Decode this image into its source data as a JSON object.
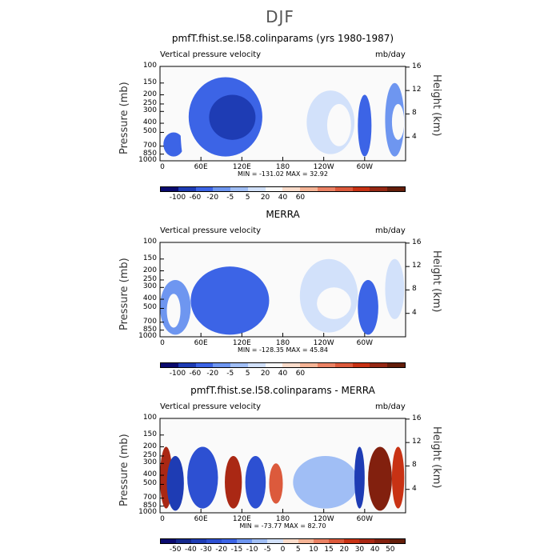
{
  "page": {
    "title": "DJF"
  },
  "common": {
    "y_title": "Pressure (mb)",
    "y2_title": "Height (km)",
    "pressure_ticks": [
      "100",
      "150",
      "200",
      "250",
      "300",
      "400",
      "500",
      "700",
      "850",
      "1000"
    ],
    "height_ticks": [
      "16",
      "12",
      "8",
      "4"
    ],
    "x_ticks": [
      "0",
      "60E",
      "120E",
      "180",
      "120W",
      "60W"
    ]
  },
  "panels": [
    {
      "title": "pmfT.fhist.se.l58.colinparams (yrs 1980-1987)",
      "left_label": "Vertical pressure velocity",
      "right_label": "mb/day",
      "minmax": "MIN = -131.02   MAX =  32.92",
      "colorbar_labels": [
        "-100",
        "-60",
        "-20",
        "-5",
        "5",
        "20",
        "40",
        "60"
      ]
    },
    {
      "title": "MERRA",
      "left_label": "Vertical pressure velocity",
      "right_label": "mb/day",
      "minmax": "MIN = -128.35   MAX =  45.84",
      "colorbar_labels": [
        "-100",
        "-60",
        "-20",
        "-5",
        "5",
        "20",
        "40",
        "60"
      ]
    },
    {
      "title": "pmfT.fhist.se.l58.colinparams - MERRA",
      "left_label": "Vertical pressure velocity",
      "right_label": "mb/day",
      "minmax": "MIN = -73.77   MAX =  82.70",
      "colorbar_labels": [
        "-50",
        "-40",
        "-30",
        "-20",
        "-15",
        "-10",
        "-5",
        "0",
        "5",
        "10",
        "15",
        "20",
        "30",
        "40",
        "50"
      ]
    }
  ],
  "chart_data": [
    {
      "type": "heatmap",
      "title": "pmfT.fhist.se.l58.colinparams (yrs 1980-1987)",
      "subtitle_left": "Vertical pressure velocity",
      "subtitle_right": "mb/day",
      "xlabel": "",
      "ylabel": "Pressure (mb)",
      "y2label": "Height (km)",
      "xlim": [
        0,
        360
      ],
      "ylim": [
        1000,
        100
      ],
      "y_scale": "log",
      "y2lim": [
        0,
        16
      ],
      "min": -131.02,
      "max": 32.92,
      "levels": [
        -100,
        -60,
        -20,
        -5,
        5,
        20,
        40,
        60
      ],
      "regions": [
        {
          "lon": [
            42,
            150
          ],
          "p": [
            130,
            900
          ],
          "value": -45
        },
        {
          "lon": [
            72,
            140
          ],
          "p": [
            200,
            600
          ],
          "value": -80
        },
        {
          "lon": [
            5,
            35
          ],
          "p": [
            500,
            900
          ],
          "value": -40
        },
        {
          "lon": [
            330,
            358
          ],
          "p": [
            150,
            900
          ],
          "value": -20
        },
        {
          "lon": [
            290,
            310
          ],
          "p": [
            200,
            900
          ],
          "value": -60
        },
        {
          "lon": [
            215,
            285
          ],
          "p": [
            180,
            850
          ],
          "value": 12
        },
        {
          "lon": [
            245,
            280
          ],
          "p": [
            250,
            700
          ],
          "value": 22
        },
        {
          "lon": [
            30,
            40
          ],
          "p": [
            200,
            900
          ],
          "value": 25
        },
        {
          "lon": [
            340,
            358
          ],
          "p": [
            250,
            600
          ],
          "value": 20
        }
      ]
    },
    {
      "type": "heatmap",
      "title": "MERRA",
      "subtitle_left": "Vertical pressure velocity",
      "subtitle_right": "mb/day",
      "xlabel": "",
      "ylabel": "Pressure (mb)",
      "y2label": "Height (km)",
      "xlim": [
        0,
        360
      ],
      "ylim": [
        1000,
        100
      ],
      "y_scale": "log",
      "y2lim": [
        0,
        16
      ],
      "min": -128.35,
      "max": 45.84,
      "levels": [
        -100,
        -60,
        -20,
        -5,
        5,
        20,
        40,
        60
      ],
      "regions": [
        {
          "lon": [
            45,
            160
          ],
          "p": [
            180,
            950
          ],
          "value": -30
        },
        {
          "lon": [
            75,
            135
          ],
          "p": [
            250,
            850
          ],
          "value": -60
        },
        {
          "lon": [
            0,
            45
          ],
          "p": [
            250,
            950
          ],
          "value": -15
        },
        {
          "lon": [
            290,
            320
          ],
          "p": [
            250,
            950
          ],
          "value": -60
        },
        {
          "lon": [
            205,
            290
          ],
          "p": [
            150,
            900
          ],
          "value": 8
        },
        {
          "lon": [
            230,
            280
          ],
          "p": [
            300,
            650
          ],
          "value": 20
        },
        {
          "lon": [
            10,
            30
          ],
          "p": [
            350,
            800
          ],
          "value": 20
        },
        {
          "lon": [
            330,
            358
          ],
          "p": [
            150,
            650
          ],
          "value": 8
        }
      ]
    },
    {
      "type": "heatmap",
      "title": "pmfT.fhist.se.l58.colinparams - MERRA",
      "subtitle_left": "Vertical pressure velocity",
      "subtitle_right": "mb/day",
      "xlabel": "",
      "ylabel": "Pressure (mb)",
      "y2label": "Height (km)",
      "xlim": [
        0,
        360
      ],
      "ylim": [
        1000,
        100
      ],
      "y_scale": "log",
      "y2lim": [
        0,
        16
      ],
      "min": -73.77,
      "max": 82.7,
      "levels": [
        -50,
        -40,
        -30,
        -20,
        -15,
        -10,
        -5,
        0,
        5,
        10,
        15,
        20,
        30,
        40,
        50
      ],
      "regions": [
        {
          "lon": [
            0,
            18
          ],
          "p": [
            200,
            900
          ],
          "value": 30
        },
        {
          "lon": [
            10,
            35
          ],
          "p": [
            250,
            950
          ],
          "value": -40
        },
        {
          "lon": [
            40,
            85
          ],
          "p": [
            200,
            900
          ],
          "value": -30
        },
        {
          "lon": [
            95,
            120
          ],
          "p": [
            250,
            900
          ],
          "value": 30
        },
        {
          "lon": [
            125,
            155
          ],
          "p": [
            250,
            900
          ],
          "value": -30
        },
        {
          "lon": [
            160,
            180
          ],
          "p": [
            300,
            800
          ],
          "value": 15
        },
        {
          "lon": [
            195,
            290
          ],
          "p": [
            250,
            900
          ],
          "value": -8
        },
        {
          "lon": [
            285,
            300
          ],
          "p": [
            200,
            900
          ],
          "value": -40
        },
        {
          "lon": [
            305,
            340
          ],
          "p": [
            200,
            950
          ],
          "value": 40
        },
        {
          "lon": [
            340,
            358
          ],
          "p": [
            200,
            900
          ],
          "value": 20
        }
      ]
    }
  ],
  "colors": {
    "div_8": [
      "#0a0a6e",
      "#1e3cb4",
      "#3c64e6",
      "#6e96f0",
      "#a0bef5",
      "#d2e1fa",
      "#fafafa",
      "#fadccb",
      "#f5b496",
      "#eb8264",
      "#dc5a3c",
      "#c83214",
      "#962814",
      "#641e0a"
    ],
    "div_15": [
      "#0a0a6e",
      "#14288c",
      "#1e3cb4",
      "#2d50d2",
      "#3c64e6",
      "#6e96f0",
      "#a0bef5",
      "#d2e1fa",
      "#fadccb",
      "#f5b496",
      "#eb8264",
      "#dc5a3c",
      "#c83214",
      "#aa2814",
      "#82200e",
      "#641e0a"
    ],
    "background": "#fafafa"
  }
}
